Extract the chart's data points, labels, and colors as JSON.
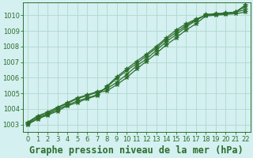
{
  "title": "Graphe pression niveau de la mer (hPa)",
  "xlim": [
    -0.5,
    22.5
  ],
  "ylim": [
    1002.5,
    1010.8
  ],
  "xticks": [
    0,
    1,
    2,
    3,
    4,
    5,
    6,
    7,
    8,
    9,
    10,
    11,
    12,
    13,
    14,
    15,
    16,
    17,
    18,
    19,
    20,
    21,
    22
  ],
  "yticks": [
    1003,
    1004,
    1005,
    1006,
    1007,
    1008,
    1009,
    1010
  ],
  "bg_color": "#d4f0f0",
  "grid_color": "#b0d8d0",
  "line_color": "#2d6e2d",
  "series": [
    [
      1003.1,
      1003.5,
      1003.7,
      1004.05,
      1004.35,
      1004.65,
      1004.85,
      1005.05,
      1005.15,
      1005.55,
      1006.0,
      1006.55,
      1007.05,
      1007.55,
      1008.1,
      1008.55,
      1009.05,
      1009.45,
      1009.95,
      1010.0,
      1010.05,
      1010.1,
      1010.2
    ],
    [
      1003.15,
      1003.55,
      1003.8,
      1004.1,
      1004.4,
      1004.7,
      1004.9,
      1005.1,
      1005.3,
      1005.7,
      1006.2,
      1006.75,
      1007.2,
      1007.75,
      1008.3,
      1008.75,
      1009.25,
      1009.65,
      1010.05,
      1010.1,
      1010.15,
      1010.2,
      1010.35
    ],
    [
      1003.05,
      1003.4,
      1003.65,
      1003.95,
      1004.25,
      1004.5,
      1004.7,
      1004.9,
      1005.4,
      1005.95,
      1006.45,
      1006.9,
      1007.4,
      1007.9,
      1008.45,
      1008.9,
      1009.35,
      1009.7,
      1010.0,
      1010.05,
      1010.1,
      1010.2,
      1010.55
    ],
    [
      1003.0,
      1003.35,
      1003.6,
      1003.85,
      1004.2,
      1004.4,
      1004.65,
      1004.85,
      1005.45,
      1006.05,
      1006.55,
      1007.05,
      1007.5,
      1008.0,
      1008.55,
      1009.05,
      1009.45,
      1009.75,
      1010.0,
      1010.05,
      1010.1,
      1010.2,
      1010.65
    ]
  ],
  "marker": "*",
  "marker_size": 4,
  "line_width": 0.9,
  "title_fontsize": 8.5,
  "tick_fontsize": 6,
  "tick_color": "#2d6e2d"
}
